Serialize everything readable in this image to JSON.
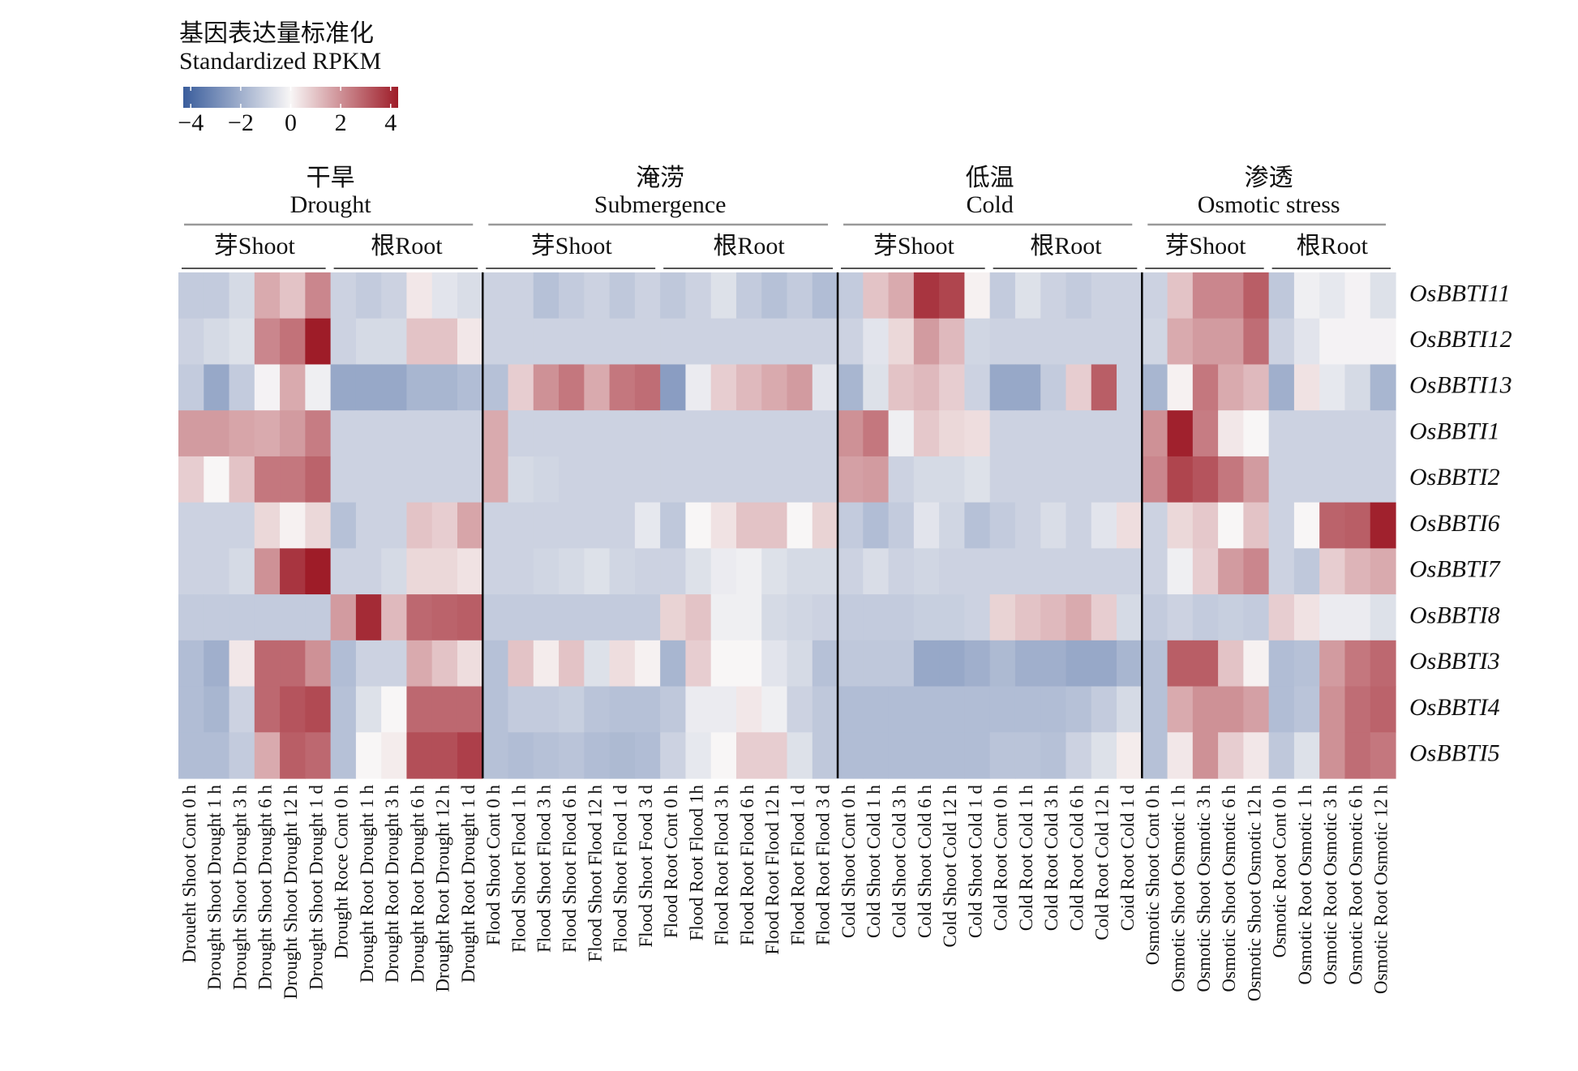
{
  "chart_data": {
    "type": "heatmap",
    "legend_title": [
      "基因表达量标准化",
      "Standardized RPKM"
    ],
    "colormap": [
      "#3a5d9c",
      "#f8f6f6",
      "#9e1c28"
    ],
    "zlim": [
      -4.3,
      4.3
    ],
    "zticks": [
      {
        "value": -4,
        "label": "−4"
      },
      {
        "value": -2,
        "label": "−2"
      },
      0,
      2,
      4
    ],
    "groups": [
      {
        "label_cn": "干旱",
        "label": "Drought",
        "subgroups": [
          "芽Shoot",
          "根Root"
        ]
      },
      {
        "label_cn": "淹涝",
        "label": "Submergence",
        "subgroups": [
          "芽Shoot",
          "根Root"
        ]
      },
      {
        "label_cn": "低温",
        "label": "Cold",
        "subgroups": [
          "芽Shoot",
          "根Root"
        ]
      },
      {
        "label_cn": "渗透",
        "label": "Osmotic stress",
        "subgroups": [
          "芽Shoot",
          "根Root"
        ]
      }
    ],
    "rows": [
      "OsBBTI11",
      "OsBBTI12",
      "OsBBTI13",
      "OsBBTI1",
      "OsBBTI2",
      "OsBBTI6",
      "OsBBTI7",
      "OsBBTI8",
      "OsBBTI3",
      "OsBBTI4",
      "OsBBTI5"
    ],
    "columns": [
      "Drouеht Shoot Cont 0 h",
      "Drought Shoot Drought 1 h",
      "Drought Shoot Drought 3 h",
      "Drought Shoot Drought 6 h",
      "Drought Shoot Drought 12 h",
      "Drought Shoot Drought 1 d",
      "Drought Roce Cont 0 h",
      "Drought Root Drought 1 h",
      "Drought Root Drought 3 h",
      "Drought Root Drought 6 h",
      "Drought Root Drought 12 h",
      "Drought Root Drought 1 d",
      "Flood Shoot Cont 0 h",
      "Flood Shoot Flood 1 h",
      "Flood Shoot Flood 3 h",
      "Flood Shoot Flood 6 h",
      "Flood Shoot Flood 12 h",
      "Flood Shoot Flood 1 d",
      "Flood Shoot Food 3 d",
      "Flood Root Cont 0 h",
      "Flood Root Flood 1h",
      "Flood Root Flood 3 h",
      "Flood Root Flood 6 h",
      "Flood Root Flood 12 h",
      "Flood Root Flood 1 d",
      "Flood Root Flood 3 d",
      "Cold Shoot Cont 0 h",
      "Cold Shoot Cold 1 h",
      "Cold Shoot Cold 3 h",
      "Cold Shoot Cold 6 h",
      "Cold Shoot Cold 12 h",
      "Cold Shoot Cold 1 d",
      "Cold Root Cont 0 h",
      "Cold Root Cold 1 h",
      "Cold Root Cold 3 h",
      "Cold Root Cold 6 h",
      "Cold Root Cold 12 h",
      "Coid Root Cold 1 d",
      "Osmotic Shoot Cont 0 h",
      "Osmotic Shoot Osmotic 1 h",
      "Osmotic Shoot Osmotic 3 h",
      "Osmotic Shoot Osmotic 6 h",
      "Osmotic Shoot Osmotic 12 h",
      "Osmotic Root Cont 0 h",
      "Osmotic Root Osmotic 1 h",
      "Osmotic Root Osmotic 3 h",
      "Osmotic Root Osmotic 6 h",
      "Osmotic Root Osmotic 12 h"
    ],
    "values": [
      [
        -1.2,
        -1.2,
        -0.8,
        1.5,
        1.0,
        2.2,
        -1,
        -1.2,
        -1,
        0.3,
        -0.5,
        -0.7,
        -1,
        -1,
        -1.5,
        -1.2,
        -1,
        -1.3,
        -1,
        -1.3,
        -1,
        -0.6,
        -1.2,
        -1.5,
        -1.2,
        -1.6,
        -1.2,
        1,
        1.5,
        3.8,
        3.5,
        0.1,
        -1.2,
        -0.6,
        -1,
        -1.2,
        -1,
        -1,
        -1,
        1,
        2.2,
        2.2,
        3,
        -1.3,
        -0.2,
        -0.4,
        -0.1,
        -0.6
      ],
      [
        -1,
        -0.8,
        -0.6,
        2.2,
        2.6,
        4.3,
        -1,
        -0.8,
        -0.8,
        1,
        1,
        0.3,
        -1,
        -1,
        -1,
        -1,
        -1,
        -1,
        -1,
        -1,
        -1,
        -1,
        -1,
        -1,
        -1,
        -1,
        -1,
        -0.5,
        0.6,
        1.8,
        1.2,
        -0.9,
        -1,
        -1,
        -1,
        -1,
        -1,
        -1,
        -0.9,
        1.5,
        1.8,
        1.8,
        2.7,
        -1,
        -0.5,
        -0.1,
        -0.1,
        -0.1
      ],
      [
        -1.2,
        -2.2,
        -1.2,
        -0.1,
        1.5,
        -0.2,
        -2.2,
        -2.2,
        -2.2,
        -1.8,
        -1.8,
        -1.6,
        -1.5,
        0.8,
        2,
        2.5,
        1.5,
        2.5,
        2.7,
        -2.5,
        -0.3,
        0.8,
        1.2,
        1.5,
        1.8,
        -0.5,
        -1.8,
        -0.6,
        1,
        1.2,
        0.8,
        -1,
        -2.2,
        -2.2,
        -1.2,
        0.8,
        3,
        -1,
        -1.8,
        0.1,
        2.5,
        1.5,
        1.2,
        -2,
        0.4,
        -0.4,
        -0.8,
        -1.8
      ],
      [
        1.8,
        1.8,
        1.6,
        1.5,
        1.8,
        2.4,
        -1,
        -1,
        -1,
        -1,
        -1,
        -1,
        1.5,
        -1,
        -1,
        -1,
        -1,
        -1,
        -1,
        -1,
        -1,
        -1,
        -1,
        -1,
        -1,
        -1,
        2,
        2.5,
        -0.2,
        0.9,
        0.6,
        0.5,
        -1,
        -1,
        -1,
        -1,
        -1,
        -1,
        2,
        4.2,
        2.4,
        0.3,
        0,
        -1,
        -1,
        -1,
        -1,
        -1
      ],
      [
        0.8,
        0,
        1,
        2.5,
        2.5,
        2.9,
        -1,
        -1,
        -1,
        -1,
        -1,
        -1,
        1.5,
        -0.8,
        -0.9,
        -1,
        -1,
        -1,
        -1,
        -1,
        -1,
        -1,
        -1,
        -1,
        -1,
        -1,
        1.7,
        1.8,
        -1,
        -0.8,
        -0.8,
        -0.6,
        -1,
        -1,
        -1,
        -1,
        -1,
        -1,
        2.2,
        3.5,
        3.2,
        2.5,
        1.8,
        -1,
        -1,
        -1,
        -1,
        -1
      ],
      [
        -1,
        -1,
        -1,
        0.6,
        0.1,
        0.6,
        -1.5,
        -1,
        -1,
        1,
        0.8,
        1.6,
        -1,
        -1,
        -1,
        -1,
        -1,
        -1,
        -0.4,
        -1.3,
        0,
        0.4,
        1,
        1,
        0,
        0.7,
        -1.2,
        -1.6,
        -1.2,
        -0.5,
        -0.9,
        -1.5,
        -1.2,
        -1,
        -0.7,
        -1,
        -0.5,
        0.5,
        -1,
        0.6,
        0.9,
        0,
        1,
        -1,
        0,
        2.9,
        3,
        4.2
      ],
      [
        -1,
        -1,
        -0.8,
        2,
        3.8,
        4.3,
        -1,
        -1,
        -0.8,
        0.6,
        0.6,
        0.4,
        -1,
        -1,
        -0.9,
        -0.8,
        -0.6,
        -0.9,
        -1,
        -1,
        -0.6,
        -0.3,
        -0.2,
        -0.6,
        -0.8,
        -0.8,
        -1,
        -0.7,
        -1,
        -0.9,
        -1,
        -1,
        -1,
        -1,
        -1,
        -1,
        -1,
        -1,
        -1,
        -0.2,
        0.8,
        1.8,
        2.2,
        -1,
        -1.3,
        0.8,
        1.3,
        1.5
      ],
      [
        -1.2,
        -1.2,
        -1.2,
        -1.2,
        -1.2,
        -1.2,
        1.8,
        4,
        1.2,
        2.8,
        2.9,
        3,
        -1.2,
        -1.2,
        -1.2,
        -1.2,
        -1.2,
        -1.2,
        -1.2,
        0.7,
        1,
        -0.2,
        -0.2,
        -0.8,
        -0.9,
        -1,
        -1.2,
        -1.2,
        -1.2,
        -1.1,
        -1.1,
        -1,
        0.7,
        1,
        1.2,
        1.5,
        0.8,
        -0.8,
        -1.2,
        -1,
        -1.2,
        -1.1,
        -1.2,
        0.8,
        0.4,
        -0.3,
        -0.3,
        -0.6
      ],
      [
        -1.6,
        -2,
        0.3,
        2.8,
        2.8,
        2,
        -1.6,
        -1,
        -1,
        1.5,
        1,
        0.5,
        -1.5,
        1,
        0.2,
        1,
        -0.6,
        0.5,
        0.1,
        -1.8,
        0.8,
        0,
        0,
        -0.5,
        -0.8,
        -1.5,
        -1.3,
        -1.3,
        -1.3,
        -2.2,
        -2.2,
        -2,
        -1.7,
        -2,
        -2,
        -2.2,
        -2.2,
        -1.8,
        -1.5,
        3,
        3,
        1,
        0.1,
        -1.6,
        -1.5,
        1.8,
        2.5,
        2.8
      ],
      [
        -1.6,
        -1.8,
        -1,
        2.8,
        3.2,
        3.4,
        -1.5,
        -0.6,
        0,
        2.8,
        2.8,
        2.8,
        -1.5,
        -1.2,
        -1.2,
        -1.1,
        -1.4,
        -1.5,
        -1.5,
        -1.3,
        -0.3,
        -0.3,
        0.3,
        -0.2,
        -1,
        -1.3,
        -1.6,
        -1.6,
        -1.6,
        -1.6,
        -1.6,
        -1.6,
        -1.6,
        -1.6,
        -1.6,
        -1.5,
        -1.2,
        -0.8,
        -1.5,
        1.5,
        2,
        2,
        1.7,
        -1.6,
        -1.4,
        2,
        2.7,
        2.9
      ],
      [
        -1.6,
        -1.6,
        -1.2,
        1.5,
        3,
        2.8,
        -1.5,
        0,
        0.2,
        3.3,
        3.3,
        3.6,
        -1.5,
        -1.6,
        -1.5,
        -1.4,
        -1.6,
        -1.7,
        -1.6,
        -1,
        -0.4,
        0,
        0.8,
        0.8,
        -0.6,
        -1.3,
        -1.6,
        -1.6,
        -1.6,
        -1.6,
        -1.6,
        -1.6,
        -1.4,
        -1.4,
        -1.5,
        -1,
        -0.6,
        0.2,
        -1.5,
        0.3,
        2,
        0.8,
        0.3,
        -1.3,
        -0.6,
        2,
        2.7,
        2.5
      ]
    ]
  }
}
